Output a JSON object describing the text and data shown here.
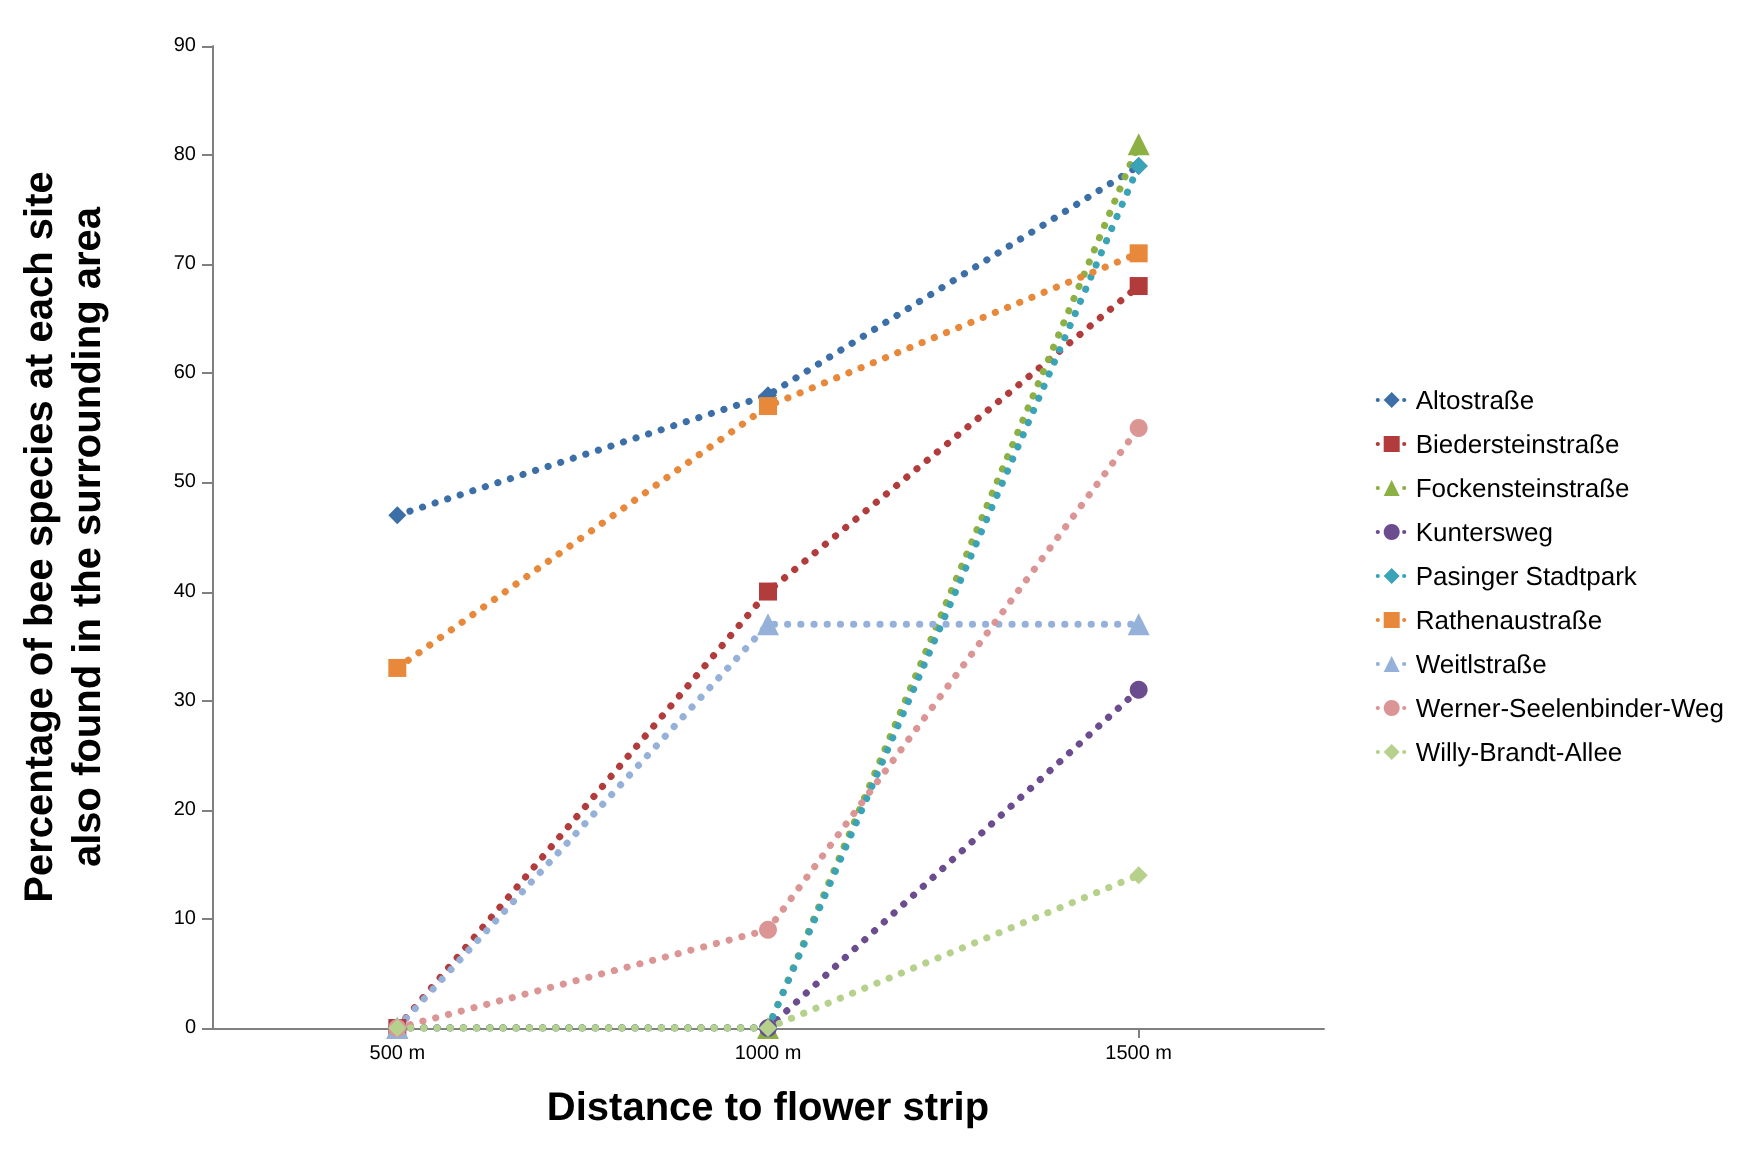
{
  "chart_data": {
    "type": "line",
    "xlabel": "Distance to flower strip",
    "ylabel": "Percentage of bee species at each site also found in the surrounding area",
    "categories": [
      "500 m",
      "1000 m",
      "1500 m"
    ],
    "ylim": [
      0,
      90
    ],
    "yticks": [
      0,
      10,
      20,
      30,
      40,
      50,
      60,
      70,
      80,
      90
    ],
    "grid": false,
    "legend": "right",
    "line_style": "dotted",
    "series": [
      {
        "name": "Altostraße",
        "color": "#3c6fa8",
        "marker": "diamond",
        "values": [
          47,
          58,
          79
        ]
      },
      {
        "name": "Biedersteinstraße",
        "color": "#b23b3b",
        "marker": "square",
        "values": [
          0,
          40,
          68
        ]
      },
      {
        "name": "Fockensteinstraße",
        "color": "#8cb043",
        "marker": "triangle",
        "values": [
          0,
          0,
          81
        ]
      },
      {
        "name": "Kuntersweg",
        "color": "#6b4c8e",
        "marker": "circle",
        "values": [
          0,
          0,
          31
        ]
      },
      {
        "name": "Pasinger Stadtpark",
        "color": "#3ba3b8",
        "marker": "diamond",
        "values": [
          0,
          0,
          79
        ]
      },
      {
        "name": "Rathenaustraße",
        "color": "#e8883a",
        "marker": "square",
        "values": [
          33,
          57,
          71
        ]
      },
      {
        "name": "Weitlstraße",
        "color": "#96b1d9",
        "marker": "triangle",
        "values": [
          0,
          37,
          37
        ]
      },
      {
        "name": "Werner-Seelenbinder-Weg",
        "color": "#db9595",
        "marker": "circle",
        "values": [
          0,
          9,
          55
        ]
      },
      {
        "name": "Willy-Brandt-Allee",
        "color": "#b6d18b",
        "marker": "diamond",
        "values": [
          0,
          0,
          14
        ]
      }
    ]
  }
}
